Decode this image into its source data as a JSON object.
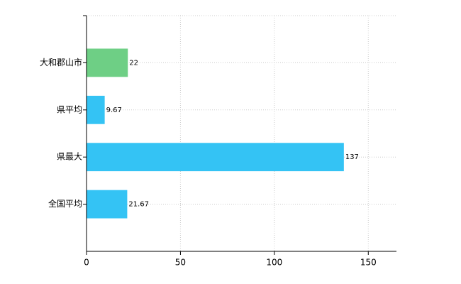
{
  "chart_data": {
    "type": "hbar",
    "categories": [
      "大和郡山市",
      "県平均",
      "県最大",
      "全国平均"
    ],
    "values": [
      22,
      9.67,
      137,
      21.67
    ],
    "colors": [
      "#6ecf85",
      "#34c3f4",
      "#34c3f4",
      "#34c3f4"
    ],
    "xlim": [
      0,
      165
    ],
    "xticks": [
      0,
      50,
      100,
      150
    ],
    "grid": true
  }
}
